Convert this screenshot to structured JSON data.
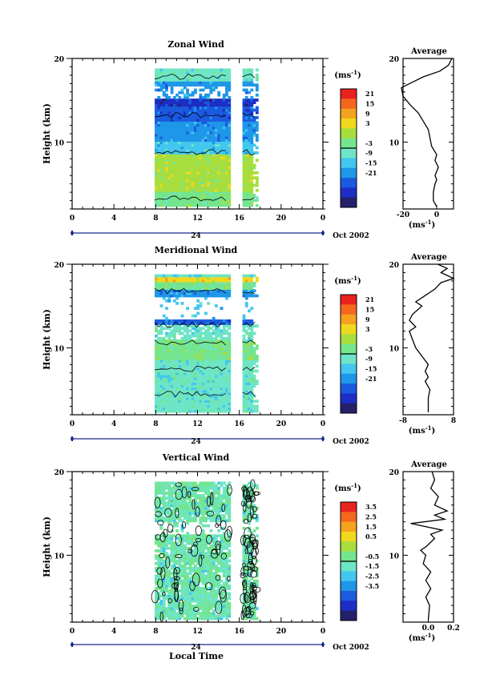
{
  "figure": {
    "date_label": "Oct 2002",
    "xlabel": "Local Time"
  },
  "chart_data": [
    {
      "type": "heatmap",
      "title": "Zonal Wind",
      "ylabel": "Height (km)",
      "ylim": [
        2,
        20
      ],
      "yticks": [
        "20",
        "10"
      ],
      "xlim": [
        0,
        24
      ],
      "xticks": [
        "0",
        "4",
        "8",
        "12",
        "16",
        "20",
        "0"
      ],
      "day_label": "24",
      "data_gap_hours": [
        [
          15.1,
          16.3
        ]
      ],
      "data_coverage_hours": [
        [
          7.9,
          15.1
        ],
        [
          16.3,
          17.7
        ]
      ],
      "colorbar": {
        "unit_base": "ms",
        "unit_exp": "-1",
        "ticks": [
          "21",
          "15",
          "9",
          "3",
          "-3",
          "-9",
          "-15",
          "-21"
        ],
        "colors": [
          "#e8221e",
          "#f4671e",
          "#f5a21f",
          "#f0d81f",
          "#a7de3e",
          "#74e58d",
          "#6ee5c6",
          "#43c7ee",
          "#1f97e8",
          "#1b5be0",
          "#1d2ec4",
          "#24206a"
        ]
      },
      "average_profile": {
        "title": "Average",
        "xlabel_base": "ms",
        "xlabel_exp": "-1",
        "xticks": [
          "-20",
          "0"
        ],
        "xlim": [
          -20,
          10
        ],
        "points": [
          [
            0,
            2.3
          ],
          [
            -2,
            3
          ],
          [
            -2,
            4
          ],
          [
            -1,
            5
          ],
          [
            0,
            5.5
          ],
          [
            -1,
            6
          ],
          [
            1,
            7
          ],
          [
            -1,
            7.8
          ],
          [
            0,
            8.5
          ],
          [
            -3,
            9.5
          ],
          [
            -4,
            10.5
          ],
          [
            -5,
            11.5
          ],
          [
            -8,
            12.5
          ],
          [
            -11,
            13.5
          ],
          [
            -16,
            14.5
          ],
          [
            -20,
            15.5
          ],
          [
            -21,
            16.5
          ],
          [
            -16,
            17
          ],
          [
            -8,
            17.8
          ],
          [
            2,
            18.5
          ],
          [
            7,
            19.2
          ],
          [
            9,
            20
          ]
        ]
      }
    },
    {
      "type": "heatmap",
      "title": "Meridional Wind",
      "ylabel": "Height (km)",
      "ylim": [
        2,
        20
      ],
      "yticks": [
        "20",
        "10"
      ],
      "xlim": [
        0,
        24
      ],
      "xticks": [
        "0",
        "4",
        "8",
        "12",
        "16",
        "20",
        "0"
      ],
      "day_label": "24",
      "data_gap_hours": [
        [
          15.1,
          16.3
        ]
      ],
      "data_coverage_hours": [
        [
          7.9,
          15.1
        ],
        [
          16.3,
          17.7
        ]
      ],
      "colorbar": {
        "unit_base": "ms",
        "unit_exp": "-1",
        "ticks": [
          "21",
          "15",
          "9",
          "3",
          "-3",
          "-9",
          "-15",
          "-21"
        ],
        "colors": [
          "#e8221e",
          "#f4671e",
          "#f5a21f",
          "#f0d81f",
          "#a7de3e",
          "#74e58d",
          "#6ee5c6",
          "#43c7ee",
          "#1f97e8",
          "#1b5be0",
          "#1d2ec4",
          "#24206a"
        ]
      },
      "average_profile": {
        "title": "Average",
        "xlabel_base": "ms",
        "xlabel_exp": "-1",
        "xticks": [
          "-8",
          "8"
        ],
        "xlim": [
          -8,
          8
        ],
        "points": [
          [
            0,
            2.3
          ],
          [
            0,
            4
          ],
          [
            0.5,
            5
          ],
          [
            -1,
            6
          ],
          [
            0,
            6.5
          ],
          [
            -1,
            7.2
          ],
          [
            0,
            8
          ],
          [
            -2,
            9
          ],
          [
            -4,
            10
          ],
          [
            -5,
            11
          ],
          [
            -6,
            12
          ],
          [
            -4,
            12.5
          ],
          [
            -6,
            13.3
          ],
          [
            -5,
            14
          ],
          [
            -2,
            15
          ],
          [
            -4,
            15.5
          ],
          [
            -2,
            16
          ],
          [
            2,
            17
          ],
          [
            4,
            17.8
          ],
          [
            8,
            18.3
          ],
          [
            4,
            19
          ],
          [
            6,
            19.5
          ],
          [
            3,
            20
          ]
        ]
      }
    },
    {
      "type": "heatmap",
      "title": "Vertical Wind",
      "ylabel": "Height (km)",
      "ylim": [
        2,
        20
      ],
      "yticks": [
        "20",
        "10"
      ],
      "xlim": [
        0,
        24
      ],
      "xticks": [
        "0",
        "4",
        "8",
        "12",
        "16",
        "20",
        "0"
      ],
      "day_label": "24",
      "data_gap_hours": [
        [
          15.1,
          16.3
        ]
      ],
      "data_coverage_hours": [
        [
          7.9,
          15.1
        ],
        [
          16.3,
          17.7
        ]
      ],
      "colorbar": {
        "unit_base": "ms",
        "unit_exp": "-1",
        "ticks": [
          "3.5",
          "2.5",
          "1.5",
          "0.5",
          "-0.5",
          "-1.5",
          "-2.5",
          "-3.5"
        ],
        "colors": [
          "#e8221e",
          "#f4671e",
          "#f5a21f",
          "#f0d81f",
          "#a7de3e",
          "#74e58d",
          "#6ee5c6",
          "#43c7ee",
          "#1f97e8",
          "#1b5be0",
          "#1d2ec4",
          "#24206a"
        ]
      },
      "average_profile": {
        "title": "Average",
        "xlabel_base": "ms",
        "xlabel_exp": "-1",
        "xticks": [
          "0.0",
          "0.2"
        ],
        "xlim": [
          -0.2,
          0.2
        ],
        "points": [
          [
            0.0,
            2.3
          ],
          [
            0.01,
            4
          ],
          [
            -0.02,
            5
          ],
          [
            0.02,
            6
          ],
          [
            -0.02,
            7
          ],
          [
            0.02,
            8
          ],
          [
            -0.04,
            9
          ],
          [
            -0.02,
            10
          ],
          [
            -0.06,
            10.6
          ],
          [
            -0.02,
            11
          ],
          [
            0.05,
            12
          ],
          [
            0.02,
            12.5
          ],
          [
            0.11,
            13
          ],
          [
            -0.14,
            13.8
          ],
          [
            0.13,
            14.3
          ],
          [
            0.05,
            14.8
          ],
          [
            0.15,
            15.3
          ],
          [
            0.05,
            16
          ],
          [
            0.08,
            17
          ],
          [
            0.02,
            18
          ],
          [
            0.05,
            19
          ],
          [
            0.03,
            20
          ]
        ]
      }
    }
  ]
}
